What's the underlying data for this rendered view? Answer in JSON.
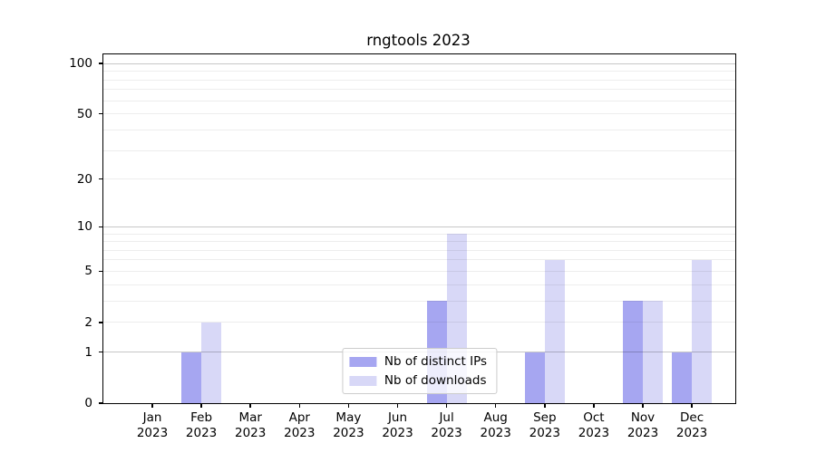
{
  "chart_data": {
    "type": "bar",
    "title": "rngtools 2023",
    "x_year": "2023",
    "categories": [
      "Jan",
      "Feb",
      "Mar",
      "Apr",
      "May",
      "Jun",
      "Jul",
      "Aug",
      "Sep",
      "Oct",
      "Nov",
      "Dec"
    ],
    "series": [
      {
        "name": "Nb of distinct IPs",
        "color": "#a6a6f1",
        "values": [
          0,
          1,
          0,
          0,
          0,
          0,
          3,
          0,
          1,
          0,
          3,
          1
        ]
      },
      {
        "name": "Nb of downloads",
        "color": "#d8d8f7",
        "values": [
          0,
          2,
          0,
          0,
          0,
          0,
          9,
          0,
          6,
          0,
          3,
          6
        ]
      }
    ],
    "yscale": "log1p",
    "ylim": [
      0,
      113
    ],
    "xlabel": "",
    "ylabel": "",
    "y_ticks": [
      0,
      1,
      2,
      5,
      10,
      20,
      50,
      100
    ],
    "y_gridlines_major": [
      1,
      10,
      100
    ],
    "y_gridlines_minor": [
      2,
      3,
      4,
      5,
      6,
      7,
      8,
      9,
      20,
      30,
      40,
      50,
      60,
      70,
      80,
      90
    ],
    "grid": true,
    "legend_position": "lower center"
  },
  "colors": {
    "background": "#ffffff",
    "bar_distinct_ips": "#a6a6f1",
    "bar_downloads": "#d8d8f7",
    "grid_major": "#c9c9c9",
    "grid_minor": "#ededed",
    "axis": "#000000",
    "text": "#000000",
    "legend_border": "#cccccc"
  }
}
